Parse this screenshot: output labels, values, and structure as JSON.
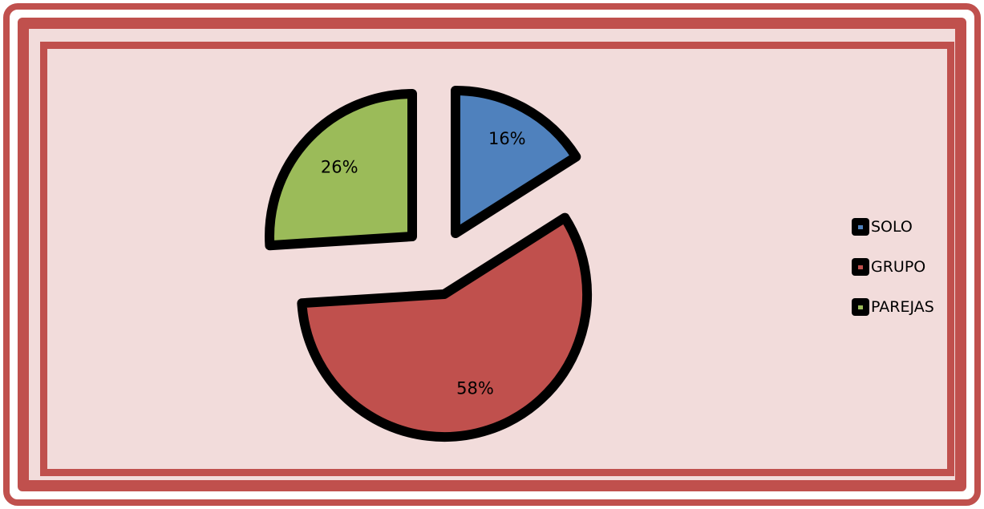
{
  "chart_data": {
    "type": "pie",
    "style": "exploded",
    "categories": [
      "SOLO",
      "GRUPO",
      "PAREJAS"
    ],
    "values": [
      16,
      58,
      26
    ],
    "labels": [
      "16%",
      "58%",
      "26%"
    ],
    "colors": [
      "#4f81bd",
      "#c0504d",
      "#9bbb59"
    ],
    "title": "",
    "legend_position": "right"
  }
}
